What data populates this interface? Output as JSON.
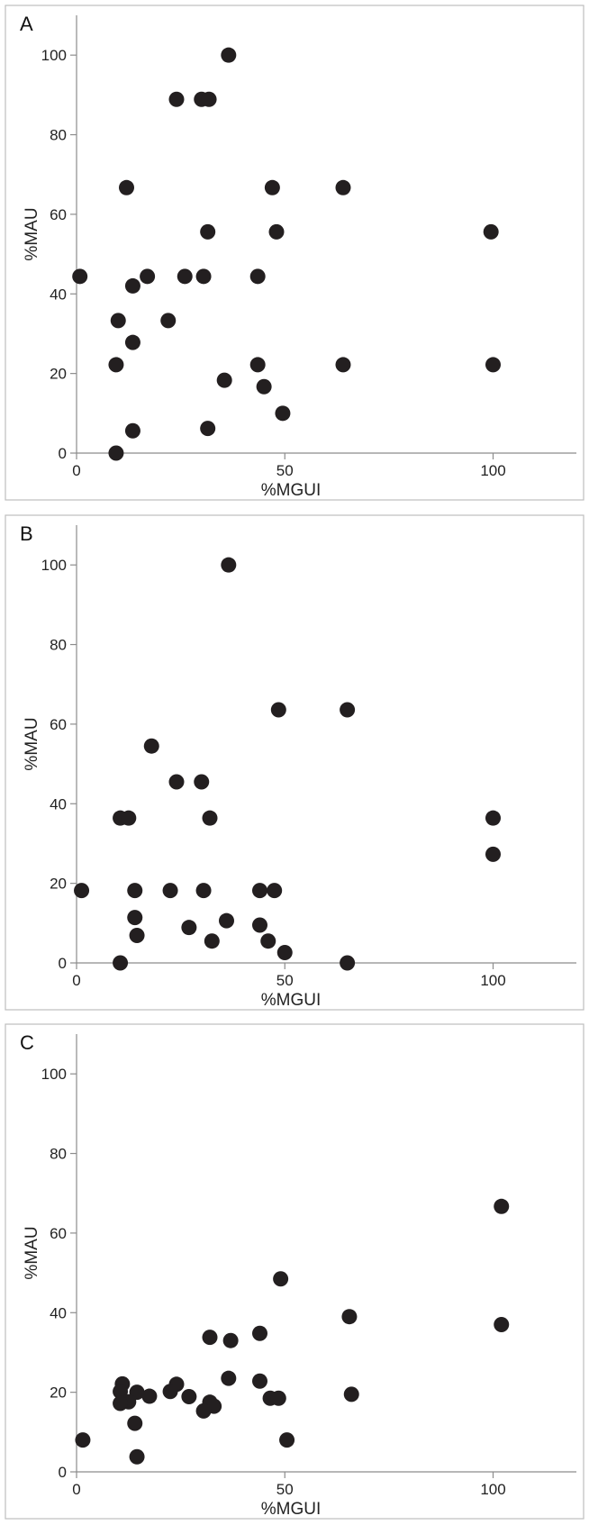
{
  "chart_data": [
    {
      "type": "scatter",
      "panel_label": "A",
      "xlabel": "%MGUI",
      "ylabel": "%MAU",
      "xlim": [
        0,
        120
      ],
      "ylim": [
        0,
        110
      ],
      "x_ticks": [
        0,
        50,
        100
      ],
      "y_ticks": [
        0,
        20,
        40,
        60,
        80,
        100
      ],
      "grid": false,
      "point_color": "#231f20",
      "points": [
        {
          "x": 36.5,
          "y": 100
        },
        {
          "x": 24,
          "y": 88.9
        },
        {
          "x": 30,
          "y": 88.9
        },
        {
          "x": 31.8,
          "y": 88.9
        },
        {
          "x": 12,
          "y": 66.7
        },
        {
          "x": 47,
          "y": 66.7
        },
        {
          "x": 64,
          "y": 66.7
        },
        {
          "x": 31.5,
          "y": 55.6
        },
        {
          "x": 48,
          "y": 55.6
        },
        {
          "x": 99.5,
          "y": 55.6
        },
        {
          "x": 0.8,
          "y": 44.4
        },
        {
          "x": 17,
          "y": 44.4
        },
        {
          "x": 26,
          "y": 44.4
        },
        {
          "x": 30.5,
          "y": 44.4
        },
        {
          "x": 43.5,
          "y": 44.4
        },
        {
          "x": 13.5,
          "y": 42
        },
        {
          "x": 10,
          "y": 33.3
        },
        {
          "x": 22,
          "y": 33.3
        },
        {
          "x": 13.5,
          "y": 27.8
        },
        {
          "x": 9.5,
          "y": 22.2
        },
        {
          "x": 43.5,
          "y": 22.2
        },
        {
          "x": 64,
          "y": 22.2
        },
        {
          "x": 100,
          "y": 22.2
        },
        {
          "x": 35.5,
          "y": 18.3
        },
        {
          "x": 45,
          "y": 16.7
        },
        {
          "x": 49.5,
          "y": 10
        },
        {
          "x": 31.5,
          "y": 6.2
        },
        {
          "x": 13.5,
          "y": 5.6
        },
        {
          "x": 9.5,
          "y": 0
        }
      ]
    },
    {
      "type": "scatter",
      "panel_label": "B",
      "xlabel": "%MGUI",
      "ylabel": "%MAU",
      "xlim": [
        0,
        120
      ],
      "ylim": [
        0,
        110
      ],
      "x_ticks": [
        0,
        50,
        100
      ],
      "y_ticks": [
        0,
        20,
        40,
        60,
        80,
        100
      ],
      "grid": false,
      "point_color": "#231f20",
      "points": [
        {
          "x": 36.5,
          "y": 100
        },
        {
          "x": 48.5,
          "y": 63.6
        },
        {
          "x": 65,
          "y": 63.6
        },
        {
          "x": 18,
          "y": 54.5
        },
        {
          "x": 24,
          "y": 45.5
        },
        {
          "x": 30,
          "y": 45.5
        },
        {
          "x": 10.5,
          "y": 36.4
        },
        {
          "x": 12.5,
          "y": 36.4
        },
        {
          "x": 32,
          "y": 36.4
        },
        {
          "x": 100,
          "y": 36.4
        },
        {
          "x": 100,
          "y": 27.3
        },
        {
          "x": 1.2,
          "y": 18.2
        },
        {
          "x": 14,
          "y": 18.2
        },
        {
          "x": 22.5,
          "y": 18.2
        },
        {
          "x": 30.5,
          "y": 18.2
        },
        {
          "x": 44,
          "y": 18.2
        },
        {
          "x": 47.5,
          "y": 18.2
        },
        {
          "x": 14,
          "y": 11.4
        },
        {
          "x": 36,
          "y": 10.6
        },
        {
          "x": 44,
          "y": 9.5
        },
        {
          "x": 27,
          "y": 8.9
        },
        {
          "x": 14.5,
          "y": 6.9
        },
        {
          "x": 32.5,
          "y": 5.5
        },
        {
          "x": 46,
          "y": 5.5
        },
        {
          "x": 50,
          "y": 2.6
        },
        {
          "x": 10.5,
          "y": 0
        },
        {
          "x": 65,
          "y": 0
        }
      ]
    },
    {
      "type": "scatter",
      "panel_label": "C",
      "xlabel": "%MGUI",
      "ylabel": "%MAU",
      "xlim": [
        0,
        120
      ],
      "ylim": [
        0,
        110
      ],
      "x_ticks": [
        0,
        50,
        100
      ],
      "y_ticks": [
        0,
        20,
        40,
        60,
        80,
        100
      ],
      "grid": false,
      "point_color": "#231f20",
      "points": [
        {
          "x": 102,
          "y": 66.7
        },
        {
          "x": 49,
          "y": 48.5
        },
        {
          "x": 65.5,
          "y": 39
        },
        {
          "x": 102,
          "y": 37
        },
        {
          "x": 44,
          "y": 34.8
        },
        {
          "x": 32,
          "y": 33.8
        },
        {
          "x": 37,
          "y": 33
        },
        {
          "x": 36.5,
          "y": 23.5
        },
        {
          "x": 44,
          "y": 22.8
        },
        {
          "x": 11,
          "y": 22.1
        },
        {
          "x": 24,
          "y": 22
        },
        {
          "x": 10.5,
          "y": 20.2
        },
        {
          "x": 22.5,
          "y": 20.2
        },
        {
          "x": 14.5,
          "y": 20
        },
        {
          "x": 66,
          "y": 19.5
        },
        {
          "x": 17.5,
          "y": 19
        },
        {
          "x": 27,
          "y": 18.9
        },
        {
          "x": 46.5,
          "y": 18.5
        },
        {
          "x": 48.5,
          "y": 18.5
        },
        {
          "x": 12.5,
          "y": 17.6
        },
        {
          "x": 32,
          "y": 17.5
        },
        {
          "x": 10.5,
          "y": 17.2
        },
        {
          "x": 33,
          "y": 16.5
        },
        {
          "x": 30.5,
          "y": 15.3
        },
        {
          "x": 14,
          "y": 12.2
        },
        {
          "x": 1.5,
          "y": 8
        },
        {
          "x": 50.5,
          "y": 8
        },
        {
          "x": 14.5,
          "y": 3.8
        }
      ]
    }
  ]
}
